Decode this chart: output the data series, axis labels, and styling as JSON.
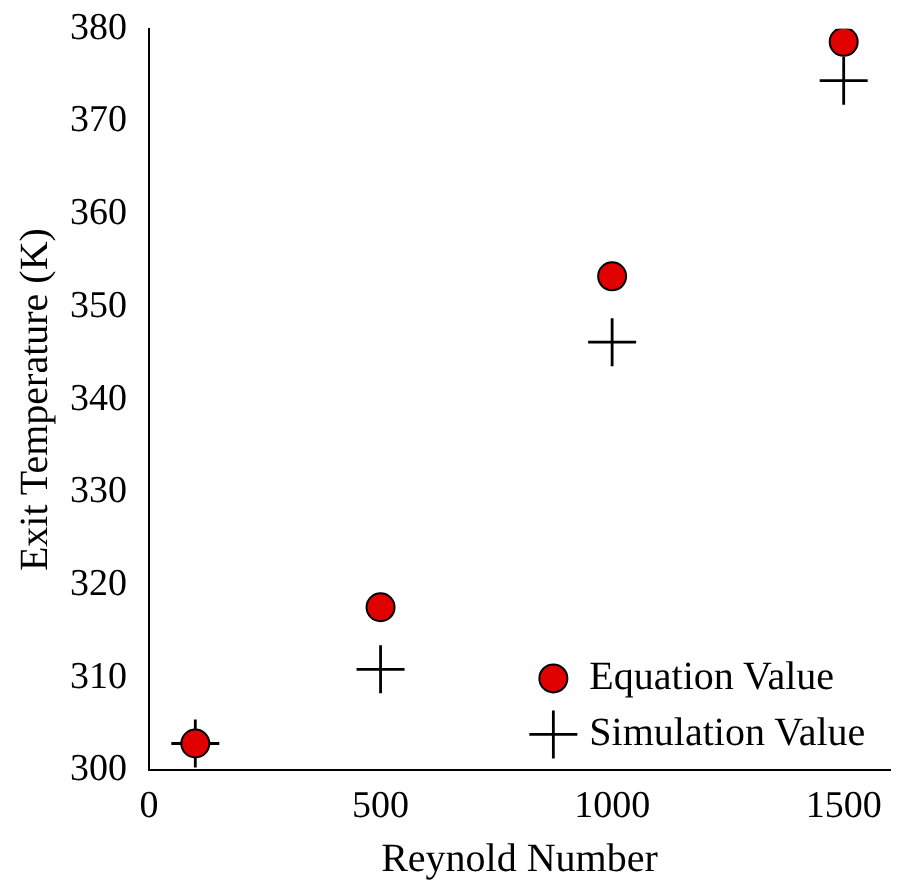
{
  "chart_data": {
    "type": "scatter",
    "xlabel": "Reynold Number",
    "ylabel": "Exit Temperature (K)",
    "x": [
      100,
      500,
      1000,
      1500
    ],
    "series": [
      {
        "name": "Equation Value",
        "color": "#e00000",
        "marker": "circle",
        "values": [
          302.9,
          317.6,
          353.3,
          378.6
        ]
      },
      {
        "name": "Simulation Value",
        "color": "#000000",
        "marker": "cross",
        "values": [
          302.9,
          310.9,
          346.2,
          374.4
        ]
      }
    ],
    "xlim": [
      0,
      1600
    ],
    "xticks": [
      0,
      500,
      1000,
      1500
    ],
    "ylim": [
      300,
      380
    ],
    "yticks": [
      300,
      310,
      320,
      330,
      340,
      350,
      360,
      370,
      380
    ],
    "grid": false,
    "legend": "bottom right"
  }
}
